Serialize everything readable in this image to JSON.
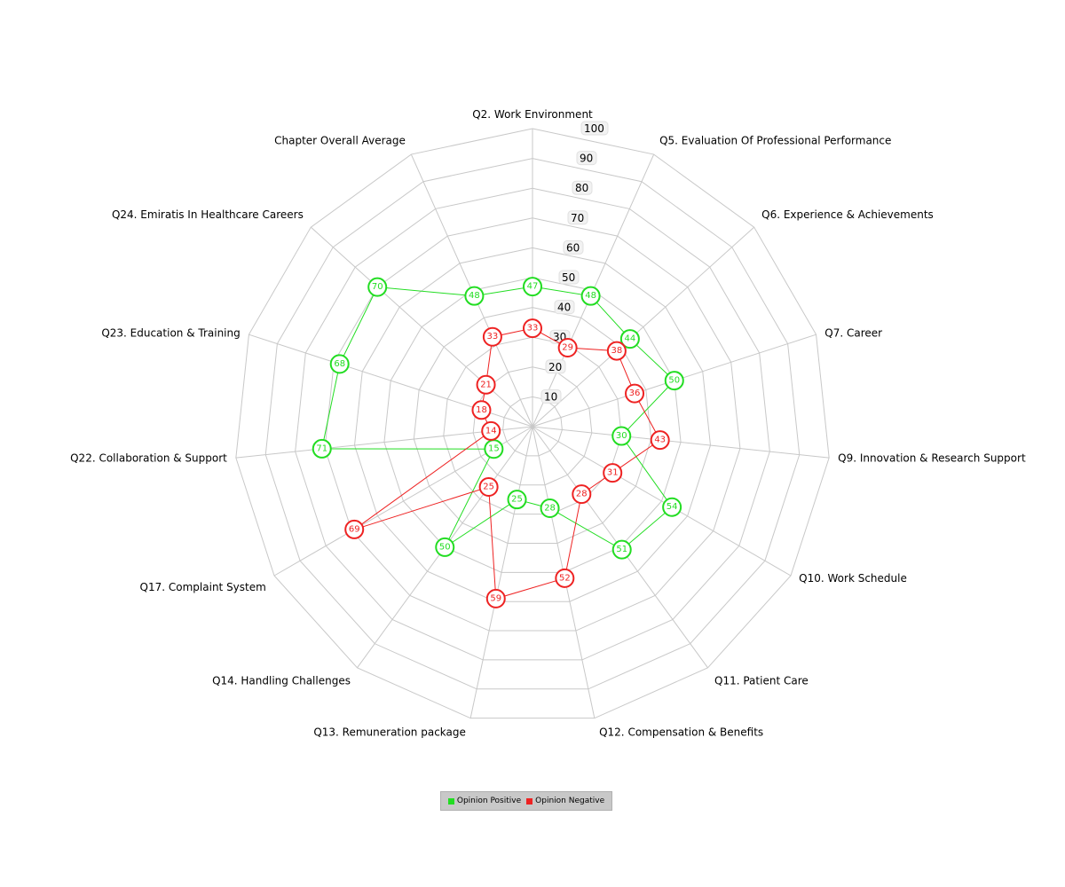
{
  "chart_data": {
    "type": "radar",
    "axes": [
      "Q2. Work Environment",
      "Q5. Evaluation Of Professional Performance",
      "Q6. Experience & Achievements",
      "Q7. Career",
      "Q9. Innovation & Research Support",
      "Q10. Work Schedule",
      "Q11. Patient Care",
      "Q12. Compensation & Benefits",
      "Q13. Remuneration package",
      "Q14. Handling Challenges",
      "Q17. Complaint System",
      "Q22. Collaboration & Support",
      "Q23. Education & Training",
      "Q24. Emiratis In Healthcare Careers",
      "Chapter Overall Average"
    ],
    "rlim": [
      0,
      100
    ],
    "ticks": [
      10,
      20,
      30,
      40,
      50,
      60,
      70,
      80,
      90,
      100
    ],
    "grid": true,
    "legend_position": "bottom",
    "series": [
      {
        "name": "Opinion Positive",
        "color": "#22dd22",
        "values": [
          47,
          48,
          44,
          50,
          30,
          54,
          51,
          28,
          25,
          50,
          15,
          71,
          68,
          70,
          48
        ]
      },
      {
        "name": "Opinion Negative",
        "color": "#ee2222",
        "values": [
          33,
          29,
          38,
          36,
          43,
          31,
          28,
          52,
          59,
          25,
          69,
          14,
          18,
          21,
          33
        ]
      }
    ]
  }
}
